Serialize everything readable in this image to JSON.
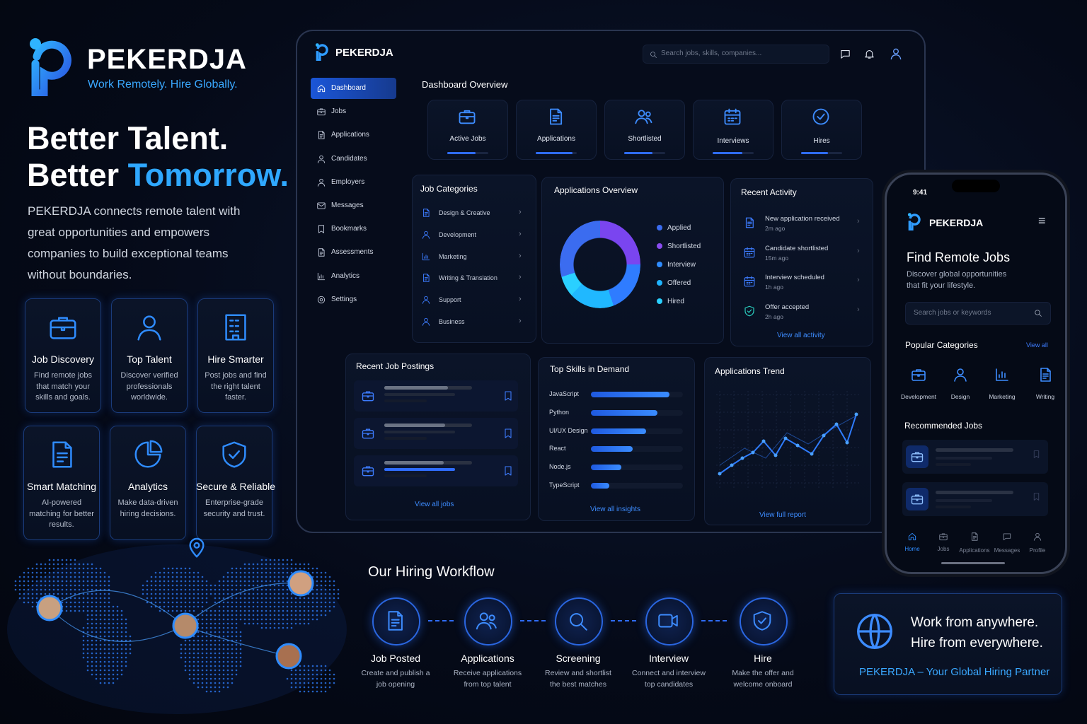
{
  "brand": {
    "name": "PEKERDJA",
    "tagline": "Work Remotely. Hire Globally."
  },
  "hero": {
    "line1": "Better Talent.",
    "line2": "Better",
    "highlight": "Tomorrow.",
    "description": "PEKERDJA connects remote talent with great opportunities and empowers companies to build exceptional teams without boundaries."
  },
  "features": [
    {
      "title": "Job Discovery",
      "text": "Find remote jobs that match your skills and goals."
    },
    {
      "title": "Top Talent",
      "text": "Discover verified professionals worldwide."
    },
    {
      "title": "Hire Smarter",
      "text": "Post jobs and find the right talent faster."
    },
    {
      "title": "Smart Matching",
      "text": "AI-powered matching for better results."
    },
    {
      "title": "Analytics",
      "text": "Make data-driven hiring decisions."
    },
    {
      "title": "Secure & Reliable",
      "text": "Enterprise-grade security and trust."
    }
  ],
  "dashboard": {
    "brand": "PEKERDJA",
    "search": "Search jobs, skills, companies...",
    "nav": [
      "Dashboard",
      "Jobs",
      "Applications",
      "Candidates",
      "Employers",
      "Messages",
      "Bookmarks",
      "Assessments",
      "Analytics",
      "Settings"
    ],
    "overview_title": "Dashboard Overview",
    "stats": [
      "Active Jobs",
      "Applications",
      "Shortlisted",
      "Interviews",
      "Hires"
    ],
    "categories": {
      "title": "Job Categories",
      "items": [
        "Design & Creative",
        "Development",
        "Marketing",
        "Writing & Translation",
        "Support",
        "Business"
      ]
    },
    "applications": {
      "title": "Applications Overview",
      "legend": [
        {
          "name": "Applied",
          "color": "#3b6cf0"
        },
        {
          "name": "Shortlisted",
          "color": "#8a4cf0"
        },
        {
          "name": "Interview",
          "color": "#2f8cff"
        },
        {
          "name": "Offered",
          "color": "#1fb4ff"
        },
        {
          "name": "Hired",
          "color": "#2ad0ff"
        }
      ]
    },
    "activity": {
      "title": "Recent Activity",
      "items": [
        {
          "text": "New application received",
          "time": "2m ago"
        },
        {
          "text": "Candidate shortlisted",
          "time": "15m ago"
        },
        {
          "text": "Interview scheduled",
          "time": "1h ago"
        },
        {
          "text": "Offer accepted",
          "time": "2h ago"
        }
      ],
      "link": "View all activity"
    },
    "postings": {
      "title": "Recent Job Postings",
      "link": "View all jobs"
    },
    "skills": {
      "title": "Top Skills in Demand",
      "items": [
        {
          "name": "JavaScript",
          "value": 85
        },
        {
          "name": "Python",
          "value": 72
        },
        {
          "name": "UI/UX Design",
          "value": 60
        },
        {
          "name": "React",
          "value": 45
        },
        {
          "name": "Node.js",
          "value": 33
        },
        {
          "name": "TypeScript",
          "value": 20
        }
      ],
      "link": "View all insights"
    },
    "trend": {
      "title": "Applications Trend",
      "link": "View full report"
    }
  },
  "workflow": {
    "title": "Our Hiring Workflow",
    "steps": [
      {
        "title": "Job Posted",
        "text": "Create and publish a job opening"
      },
      {
        "title": "Applications",
        "text": "Receive applications from top talent"
      },
      {
        "title": "Screening",
        "text": "Review and shortlist the best matches"
      },
      {
        "title": "Interview",
        "text": "Connect and interview top candidates"
      },
      {
        "title": "Hire",
        "text": "Make the offer and welcome onboard"
      }
    ]
  },
  "phone": {
    "time": "9:41",
    "brand": "PEKERDJA",
    "title": "Find Remote Jobs",
    "subtitle": "Discover global opportunities that fit your lifestyle.",
    "search": "Search jobs or keywords",
    "categories_title": "Popular Categories",
    "view_all": "View all",
    "categories": [
      "Development",
      "Design",
      "Marketing",
      "Writing"
    ],
    "recommended_title": "Recommended Jobs",
    "tabs": [
      "Home",
      "Jobs",
      "Applications",
      "Messages",
      "Profile"
    ]
  },
  "cta": {
    "line1": "Work from anywhere.",
    "line2": "Hire from everywhere.",
    "tagline": "PEKERDJA – Your Global Hiring Partner"
  }
}
